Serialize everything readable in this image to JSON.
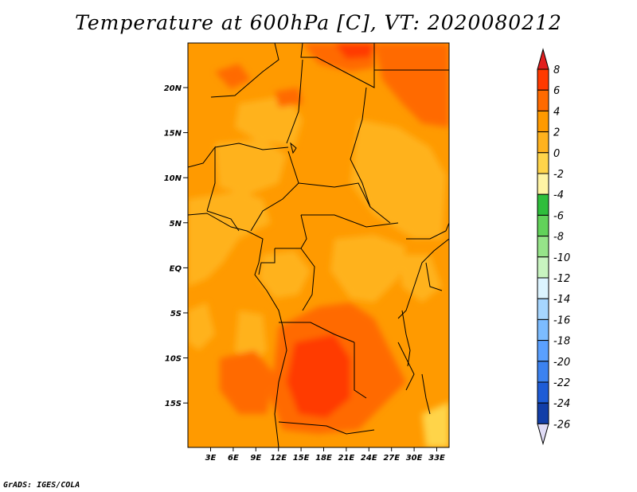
{
  "title": "Temperature at 600hPa [C], VT: 2020080212",
  "credit": "GrADS: IGES/COLA",
  "map": {
    "lon_ticks": [
      "3E",
      "6E",
      "9E",
      "12E",
      "15E",
      "18E",
      "21E",
      "24E",
      "27E",
      "30E",
      "33E"
    ],
    "lat_ticks": [
      "20N",
      "15N",
      "10N",
      "5N",
      "EQ",
      "5S",
      "10S",
      "15S"
    ]
  },
  "colorbar": {
    "labels": [
      "8",
      "6",
      "4",
      "2",
      "0",
      "-2",
      "-4",
      "-6",
      "-8",
      "-10",
      "-12",
      "-14",
      "-16",
      "-18",
      "-20",
      "-22",
      "-24",
      "-26"
    ],
    "colors": [
      "#ff3a00",
      "#ff6a00",
      "#ff9a00",
      "#ffb21e",
      "#ffd44a",
      "#fff4a4",
      "#2fbe3c",
      "#62d25a",
      "#96e489",
      "#c8f4c0",
      "#dcf4ff",
      "#a6d6ff",
      "#7cbcff",
      "#5aa0ff",
      "#3c82f0",
      "#1e5cd6",
      "#123ea8",
      "#0a1a6e"
    ],
    "top_arrow_color": "#e21e1e",
    "bottom_arrow_color": "#e0dcf6"
  },
  "palette": {
    "c0": "#ffd44a",
    "c2": "#ffb21e",
    "c4": "#ff9a00",
    "c6": "#ff6a00",
    "c8": "#ff3a00"
  }
}
